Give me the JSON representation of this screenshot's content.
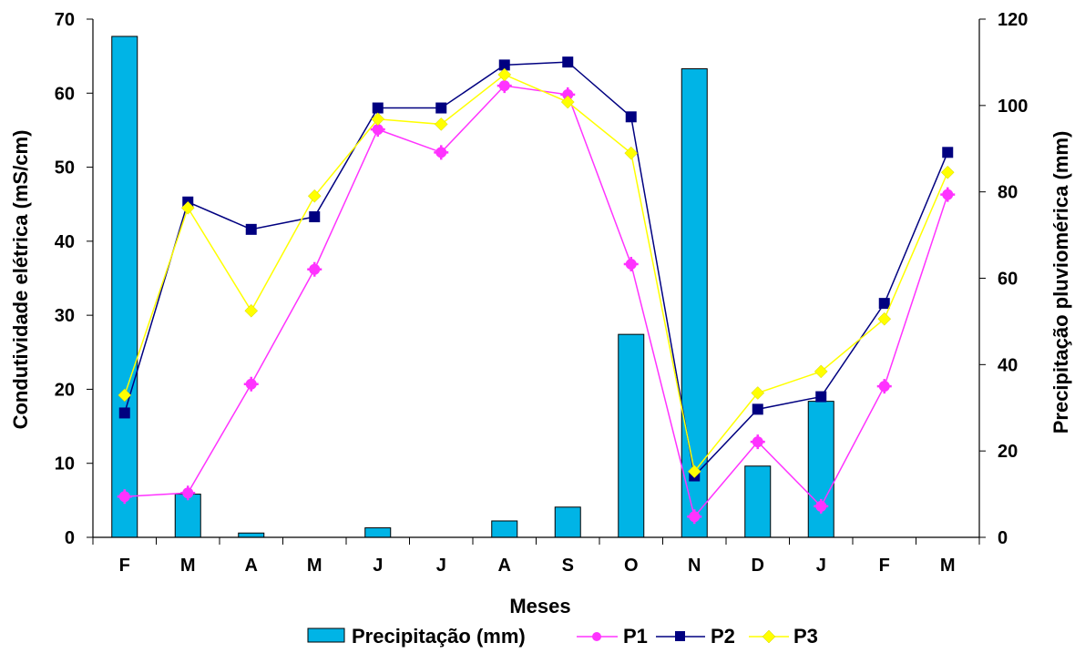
{
  "chart_data": {
    "type": "bar+line",
    "categories": [
      "F",
      "M",
      "A",
      "M",
      "J",
      "J",
      "A",
      "S",
      "O",
      "N",
      "D",
      "J",
      "F",
      "M"
    ],
    "xlabel": "Meses",
    "ylabel_left": "Condutividade elétrica (mS/cm)",
    "ylabel_right": "Precipitação pluviomérica (mm)",
    "ylim_left": [
      0,
      70
    ],
    "yticks_left": [
      0,
      10,
      20,
      30,
      40,
      50,
      60,
      70
    ],
    "ylim_right": [
      0,
      120
    ],
    "yticks_right": [
      0,
      20,
      40,
      60,
      80,
      100,
      120
    ],
    "grid": false,
    "legend_position": "bottom",
    "bars": {
      "name": "Precipitação (mm)",
      "axis": "right",
      "color": "#00b4e6",
      "values": [
        116,
        10,
        1,
        0,
        2.2,
        0,
        3.8,
        7,
        47,
        108.5,
        16.5,
        31.5,
        0,
        0
      ]
    },
    "series": [
      {
        "name": "P1",
        "axis": "left",
        "color": "#ff33ff",
        "marker": "asterisk-circle",
        "values": [
          5.5,
          6,
          20.7,
          36.2,
          55.1,
          52,
          61,
          59.8,
          36.9,
          2.8,
          12.9,
          4.2,
          20.4,
          46.3
        ]
      },
      {
        "name": "P2",
        "axis": "left",
        "color": "#000080",
        "marker": "square",
        "values": [
          16.8,
          45.3,
          41.6,
          43.3,
          58,
          58,
          63.8,
          64.2,
          56.8,
          8.3,
          17.3,
          19,
          31.6,
          52
        ]
      },
      {
        "name": "P3",
        "axis": "left",
        "color": "#ffff00",
        "marker": "diamond",
        "values": [
          19.2,
          44.5,
          30.6,
          46.1,
          56.5,
          55.8,
          62.5,
          58.8,
          51.9,
          8.9,
          19.5,
          22.4,
          29.5,
          49.3
        ]
      }
    ]
  }
}
